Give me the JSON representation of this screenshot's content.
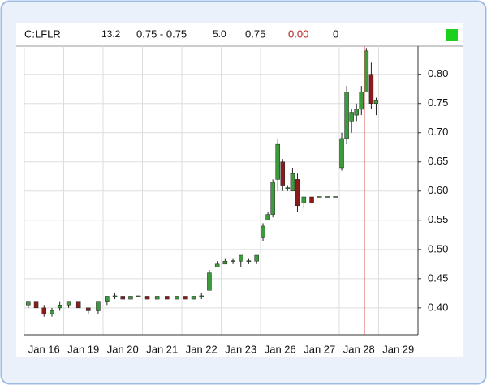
{
  "chart_data": {
    "type": "candlestick",
    "header": {
      "symbol": "C:LFLR",
      "fields": [
        "13.2",
        "0.75 - 0.75",
        "5.0",
        "0.75",
        "0.00",
        "0"
      ]
    },
    "up_color": "#3c9a3c",
    "down_color": "#8a1c1c",
    "ylim": [
      0.354,
      0.844
    ],
    "yticks": [
      {
        "value": 0.4,
        "label": "0.40"
      },
      {
        "value": 0.45,
        "label": "0.45"
      },
      {
        "value": 0.5,
        "label": "0.50"
      },
      {
        "value": 0.55,
        "label": "0.55"
      },
      {
        "value": 0.6,
        "label": "0.60"
      },
      {
        "value": 0.65,
        "label": "0.65"
      },
      {
        "value": 0.7,
        "label": "0.70"
      },
      {
        "value": 0.75,
        "label": "0.75"
      },
      {
        "value": 0.8,
        "label": "0.80"
      }
    ],
    "grid": true,
    "days": [
      {
        "label": "Jan 16",
        "candles": [
          {
            "o": 0.405,
            "h": 0.41,
            "l": 0.4,
            "c": 0.41
          },
          {
            "o": 0.41,
            "h": 0.41,
            "l": 0.4,
            "c": 0.4
          },
          {
            "o": 0.4,
            "h": 0.405,
            "l": 0.385,
            "c": 0.39
          },
          {
            "o": 0.39,
            "h": 0.4,
            "l": 0.385,
            "c": 0.395
          },
          {
            "o": 0.4,
            "h": 0.41,
            "l": 0.395,
            "c": 0.405
          }
        ]
      },
      {
        "label": "Jan 19",
        "candles": [
          {
            "o": 0.405,
            "h": 0.41,
            "l": 0.4,
            "c": 0.41
          },
          {
            "o": 0.41,
            "h": 0.41,
            "l": 0.4,
            "c": 0.4
          },
          {
            "o": 0.4,
            "h": 0.4,
            "l": 0.39,
            "c": 0.395
          },
          {
            "o": 0.395,
            "h": 0.41,
            "l": 0.39,
            "c": 0.41
          }
        ]
      },
      {
        "label": "Jan 20",
        "candles": [
          {
            "o": 0.41,
            "h": 0.42,
            "l": 0.405,
            "c": 0.42
          },
          {
            "o": 0.42,
            "h": 0.425,
            "l": 0.415,
            "c": 0.42
          },
          {
            "o": 0.42,
            "h": 0.42,
            "l": 0.415,
            "c": 0.415
          },
          {
            "o": 0.415,
            "h": 0.42,
            "l": 0.415,
            "c": 0.42
          },
          {
            "o": 0.42,
            "h": 0.42,
            "l": 0.42,
            "c": 0.42
          }
        ]
      },
      {
        "label": "Jan 21",
        "candles": [
          {
            "o": 0.42,
            "h": 0.42,
            "l": 0.415,
            "c": 0.415
          },
          {
            "o": 0.415,
            "h": 0.42,
            "l": 0.415,
            "c": 0.42
          },
          {
            "o": 0.42,
            "h": 0.42,
            "l": 0.415,
            "c": 0.415
          },
          {
            "o": 0.415,
            "h": 0.42,
            "l": 0.415,
            "c": 0.42
          }
        ]
      },
      {
        "label": "Jan 22",
        "candles": [
          {
            "o": 0.42,
            "h": 0.42,
            "l": 0.415,
            "c": 0.415
          },
          {
            "o": 0.415,
            "h": 0.42,
            "l": 0.415,
            "c": 0.42
          },
          {
            "o": 0.42,
            "h": 0.425,
            "l": 0.415,
            "c": 0.42
          },
          {
            "o": 0.43,
            "h": 0.465,
            "l": 0.43,
            "c": 0.46
          },
          {
            "o": 0.47,
            "h": 0.48,
            "l": 0.47,
            "c": 0.475
          }
        ]
      },
      {
        "label": "Jan 23",
        "candles": [
          {
            "o": 0.475,
            "h": 0.485,
            "l": 0.475,
            "c": 0.48
          },
          {
            "o": 0.48,
            "h": 0.485,
            "l": 0.475,
            "c": 0.48
          },
          {
            "o": 0.48,
            "h": 0.49,
            "l": 0.47,
            "c": 0.49
          },
          {
            "o": 0.48,
            "h": 0.485,
            "l": 0.475,
            "c": 0.48
          },
          {
            "o": 0.48,
            "h": 0.49,
            "l": 0.475,
            "c": 0.49
          }
        ]
      },
      {
        "label": "Jan 26",
        "candles": [
          {
            "o": 0.52,
            "h": 0.545,
            "l": 0.515,
            "c": 0.54
          },
          {
            "o": 0.55,
            "h": 0.565,
            "l": 0.55,
            "c": 0.56
          },
          {
            "o": 0.56,
            "h": 0.62,
            "l": 0.555,
            "c": 0.615
          },
          {
            "o": 0.62,
            "h": 0.69,
            "l": 0.6,
            "c": 0.68
          },
          {
            "o": 0.65,
            "h": 0.655,
            "l": 0.6,
            "c": 0.61
          },
          {
            "o": 0.605,
            "h": 0.61,
            "l": 0.6,
            "c": 0.605
          },
          {
            "o": 0.6,
            "h": 0.64,
            "l": 0.6,
            "c": 0.63
          },
          {
            "o": 0.62,
            "h": 0.63,
            "l": 0.565,
            "c": 0.575
          }
        ]
      },
      {
        "label": "Jan 27",
        "candles": [
          {
            "o": 0.58,
            "h": 0.59,
            "l": 0.57,
            "c": 0.59
          },
          {
            "o": 0.59,
            "h": 0.59,
            "l": 0.58,
            "c": 0.58
          },
          {
            "o": 0.59,
            "h": 0.59,
            "l": 0.59,
            "c": 0.59
          },
          {
            "o": 0.59,
            "h": 0.59,
            "l": 0.59,
            "c": 0.59
          },
          {
            "o": 0.59,
            "h": 0.59,
            "l": 0.59,
            "c": 0.59
          }
        ]
      },
      {
        "label": "Jan 28",
        "candles": [
          {
            "o": 0.64,
            "h": 0.7,
            "l": 0.635,
            "c": 0.69
          },
          {
            "o": 0.69,
            "h": 0.78,
            "l": 0.68,
            "c": 0.77
          },
          {
            "o": 0.72,
            "h": 0.74,
            "l": 0.7,
            "c": 0.735
          },
          {
            "o": 0.73,
            "h": 0.75,
            "l": 0.72,
            "c": 0.74
          },
          {
            "o": 0.74,
            "h": 0.78,
            "l": 0.73,
            "c": 0.77
          },
          {
            "o": 0.77,
            "h": 0.845,
            "l": 0.77,
            "c": 0.84
          },
          {
            "o": 0.8,
            "h": 0.82,
            "l": 0.74,
            "c": 0.75
          },
          {
            "o": 0.75,
            "h": 0.76,
            "l": 0.73,
            "c": 0.755
          }
        ]
      },
      {
        "label": "Jan 29",
        "candles": []
      }
    ]
  }
}
